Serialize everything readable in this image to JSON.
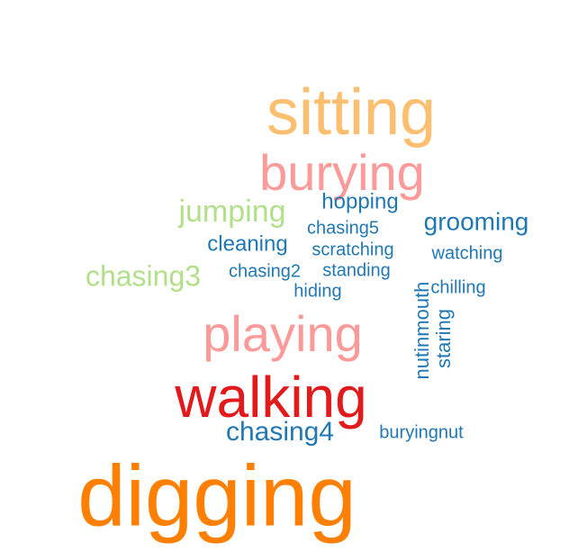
{
  "colors": {
    "light_orange": "#FDBF6F",
    "pink": "#FB9A99",
    "light_green": "#B2DF8A",
    "blue": "#1F78B4",
    "red": "#E31A1C",
    "orange": "#FF7F00"
  },
  "words": [
    {
      "text": "sitting",
      "color": "#FDBF6F"
    },
    {
      "text": "burying",
      "color": "#FB9A99"
    },
    {
      "text": "jumping",
      "color": "#B2DF8A"
    },
    {
      "text": "hopping",
      "color": "#1F78B4"
    },
    {
      "text": "chasing5",
      "color": "#1F78B4"
    },
    {
      "text": "grooming",
      "color": "#1F78B4"
    },
    {
      "text": "cleaning",
      "color": "#1F78B4"
    },
    {
      "text": "scratching",
      "color": "#1F78B4"
    },
    {
      "text": "watching",
      "color": "#1F78B4"
    },
    {
      "text": "chasing3",
      "color": "#B2DF8A"
    },
    {
      "text": "chasing2",
      "color": "#1F78B4"
    },
    {
      "text": "standing",
      "color": "#1F78B4"
    },
    {
      "text": "hiding",
      "color": "#1F78B4"
    },
    {
      "text": "chilling",
      "color": "#1F78B4"
    },
    {
      "text": "nutinmouth",
      "color": "#1F78B4"
    },
    {
      "text": "staring",
      "color": "#1F78B4"
    },
    {
      "text": "playing",
      "color": "#FB9A99"
    },
    {
      "text": "walking",
      "color": "#E31A1C"
    },
    {
      "text": "chasing4",
      "color": "#1F78B4"
    },
    {
      "text": "buryingnut",
      "color": "#1F78B4"
    },
    {
      "text": "digging",
      "color": "#FF7F00"
    }
  ]
}
